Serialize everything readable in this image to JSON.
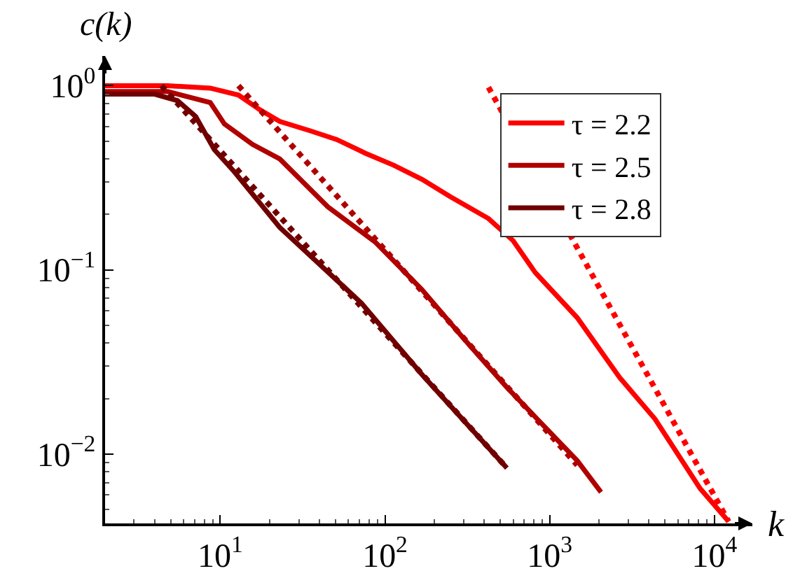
{
  "chart_data": {
    "type": "line",
    "xlabel": "k",
    "ylabel": "c(k)",
    "log": "xy",
    "grid": false,
    "legend": "top right",
    "marker": "none",
    "xlim": [
      2,
      17000
    ],
    "ylim": [
      0.0042,
      1.45
    ],
    "xticks": [
      {
        "value": 2,
        "label": null
      },
      {
        "value": 3,
        "label": null
      },
      {
        "value": 4,
        "label": null
      },
      {
        "value": 5,
        "label": null
      },
      {
        "value": 6,
        "label": null
      },
      {
        "value": 7,
        "label": null
      },
      {
        "value": 8,
        "label": null
      },
      {
        "value": 9,
        "label": null
      },
      {
        "value": 10,
        "label": "10$^{1}$"
      },
      {
        "value": 20,
        "label": null
      },
      {
        "value": 30,
        "label": null
      },
      {
        "value": 40,
        "label": null
      },
      {
        "value": 50,
        "label": null
      },
      {
        "value": 60,
        "label": null
      },
      {
        "value": 70,
        "label": null
      },
      {
        "value": 80,
        "label": null
      },
      {
        "value": 90,
        "label": null
      },
      {
        "value": 100,
        "label": "10$^{2}$"
      },
      {
        "value": 200,
        "label": null
      },
      {
        "value": 300,
        "label": null
      },
      {
        "value": 400,
        "label": null
      },
      {
        "value": 500,
        "label": null
      },
      {
        "value": 600,
        "label": null
      },
      {
        "value": 700,
        "label": null
      },
      {
        "value": 800,
        "label": null
      },
      {
        "value": 900,
        "label": null
      },
      {
        "value": 1000,
        "label": "10$^{3}$"
      },
      {
        "value": 2000,
        "label": null
      },
      {
        "value": 3000,
        "label": null
      },
      {
        "value": 4000,
        "label": null
      },
      {
        "value": 5000,
        "label": null
      },
      {
        "value": 6000,
        "label": null
      },
      {
        "value": 7000,
        "label": null
      },
      {
        "value": 8000,
        "label": null
      },
      {
        "value": 9000,
        "label": null
      },
      {
        "value": 10000,
        "label": "10$^{4}$"
      }
    ],
    "yticks": [
      {
        "value": 0.005,
        "label": null
      },
      {
        "value": 0.006,
        "label": null
      },
      {
        "value": 0.007,
        "label": null
      },
      {
        "value": 0.008,
        "label": null
      },
      {
        "value": 0.009,
        "label": null
      },
      {
        "value": 0.01,
        "label": "10$^{−2}$"
      },
      {
        "value": 0.02,
        "label": null
      },
      {
        "value": 0.03,
        "label": null
      },
      {
        "value": 0.04,
        "label": null
      },
      {
        "value": 0.05,
        "label": null
      },
      {
        "value": 0.06,
        "label": null
      },
      {
        "value": 0.07,
        "label": null
      },
      {
        "value": 0.08,
        "label": null
      },
      {
        "value": 0.09,
        "label": null
      },
      {
        "value": 0.1,
        "label": "10$^{−1}$"
      },
      {
        "value": 0.2,
        "label": null
      },
      {
        "value": 0.3,
        "label": null
      },
      {
        "value": 0.4,
        "label": null
      },
      {
        "value": 0.5,
        "label": null
      },
      {
        "value": 0.6,
        "label": null
      },
      {
        "value": 0.7,
        "label": null
      },
      {
        "value": 0.8,
        "label": null
      },
      {
        "value": 0.9,
        "label": null
      },
      {
        "value": 1,
        "label": "10$^{0}$"
      }
    ],
    "series": [
      {
        "name": "τ = 2.2",
        "color": "#ff0000",
        "line_style": "solid",
        "x": [
          2,
          4.8,
          8.7,
          12.9,
          17.4,
          23,
          35,
          51,
          76,
          113,
          168,
          249,
          425,
          600,
          815,
          1470,
          2660,
          4360,
          8190,
          12200
        ],
        "values": [
          1.0,
          1.0,
          0.97,
          0.89,
          0.74,
          0.64,
          0.57,
          0.51,
          0.43,
          0.37,
          0.31,
          0.25,
          0.19,
          0.144,
          0.097,
          0.055,
          0.026,
          0.0155,
          0.0065,
          0.0043
        ]
      },
      {
        "name": "τ = 2.5",
        "color": "#b00000",
        "line_style": "solid",
        "x": [
          2,
          4.8,
          8.7,
          10.6,
          15.7,
          23,
          45,
          87,
          168,
          303,
          550,
          1470,
          2050
        ],
        "values": [
          0.93,
          0.93,
          0.81,
          0.62,
          0.48,
          0.4,
          0.22,
          0.142,
          0.078,
          0.042,
          0.023,
          0.0092,
          0.0062
        ]
      },
      {
        "name": "τ = 2.8",
        "color": "#700000",
        "line_style": "solid",
        "x": [
          2,
          4,
          5.5,
          7.1,
          9.2,
          12.2,
          23,
          72,
          168,
          550
        ],
        "values": [
          0.9,
          0.9,
          0.83,
          0.68,
          0.45,
          0.34,
          0.17,
          0.066,
          0.027,
          0.0084
        ]
      },
      {
        "color": "#ff0000",
        "line_style": "dotted",
        "x": [
          425,
          12200
        ],
        "values": [
          0.98,
          0.0043
        ]
      },
      {
        "color": "#b00000",
        "line_style": "dotted",
        "x": [
          12.9,
          1470
        ],
        "values": [
          1.0,
          0.0087
        ]
      },
      {
        "color": "#700000",
        "line_style": "dotted",
        "x": [
          4.4,
          550
        ],
        "values": [
          1.0,
          0.0084
        ]
      }
    ]
  }
}
